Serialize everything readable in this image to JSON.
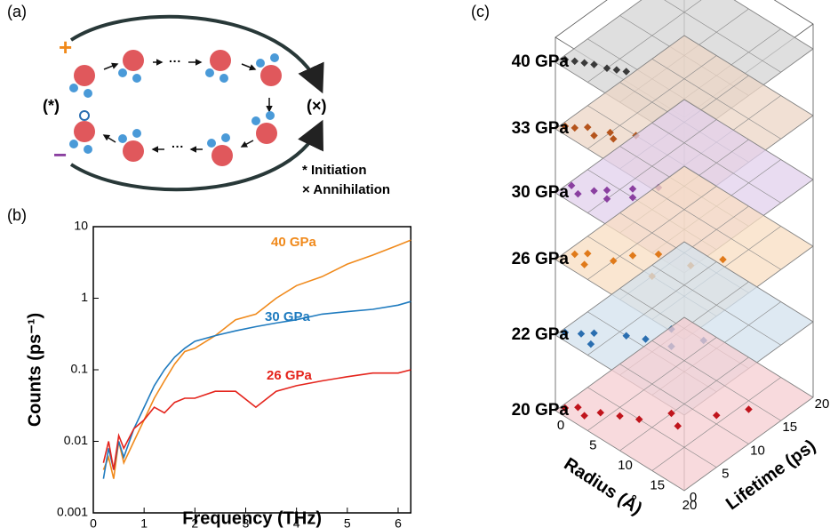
{
  "panel_a": {
    "label": "(a)",
    "plus": "+",
    "minus": "−",
    "initiation_mark": "(*)",
    "annihilation_mark": "(×)",
    "legend": [
      "* Initiation",
      "× Annihilation"
    ]
  },
  "chart_data": [
    {
      "type": "line",
      "panel_label": "(b)",
      "xlabel": "Frequency (THz)",
      "ylabel": "Counts (ps⁻¹)",
      "log_y": true,
      "xlim": [
        0,
        6.25
      ],
      "xticks": [
        0,
        1,
        2,
        3,
        4,
        5,
        6
      ],
      "ylim": [
        0.001,
        10
      ],
      "yticks": [
        0.001,
        0.01,
        0.1,
        1,
        10
      ],
      "x": [
        0.2,
        0.3,
        0.4,
        0.5,
        0.6,
        0.8,
        1.0,
        1.2,
        1.4,
        1.6,
        1.8,
        2.0,
        2.4,
        2.8,
        3.2,
        3.6,
        4.0,
        4.5,
        5.0,
        5.5,
        6.0,
        6.25
      ],
      "series": [
        {
          "name": "40 GPa",
          "color": "#f08a1c",
          "values": [
            0.004,
            0.006,
            0.003,
            0.01,
            0.005,
            0.01,
            0.02,
            0.04,
            0.07,
            0.12,
            0.18,
            0.2,
            0.3,
            0.5,
            0.6,
            1.0,
            1.5,
            2.0,
            3.0,
            4.0,
            5.5,
            6.5
          ]
        },
        {
          "name": "30 GPa",
          "color": "#1f7bbf",
          "values": [
            0.003,
            0.008,
            0.004,
            0.01,
            0.006,
            0.015,
            0.03,
            0.06,
            0.1,
            0.15,
            0.2,
            0.25,
            0.3,
            0.35,
            0.4,
            0.45,
            0.5,
            0.6,
            0.65,
            0.7,
            0.8,
            0.9
          ]
        },
        {
          "name": "26 GPa",
          "color": "#e4241c",
          "values": [
            0.005,
            0.01,
            0.004,
            0.012,
            0.008,
            0.015,
            0.02,
            0.03,
            0.025,
            0.035,
            0.04,
            0.04,
            0.05,
            0.05,
            0.03,
            0.05,
            0.06,
            0.07,
            0.08,
            0.09,
            0.09,
            0.1
          ]
        }
      ]
    },
    {
      "type": "scatter3d",
      "panel_label": "(c)",
      "xlabel": "Radius (Å)",
      "ylabel": "Lifetime (ps)",
      "xlim": [
        0,
        20
      ],
      "xticks": [
        0,
        5,
        10,
        15,
        20
      ],
      "ylim": [
        0,
        20
      ],
      "yticks": [
        0,
        5,
        10,
        15,
        20
      ],
      "series": [
        {
          "name": "40 GPa",
          "color": "#3a3a3a",
          "plane": "#d4d4d4",
          "x": [
            0.5,
            1.5,
            2.5,
            3.5,
            5,
            6,
            7
          ],
          "values": [
            1,
            1.5,
            2,
            2.5,
            3,
            3.5,
            4
          ]
        },
        {
          "name": "33 GPa",
          "color": "#b5541c",
          "plane": "#ecd5c6",
          "x": [
            0.5,
            1.5,
            2.5,
            4,
            5,
            6,
            7.5
          ],
          "values": [
            1,
            1.5,
            2.5,
            2,
            3.5,
            3,
            5
          ]
        },
        {
          "name": "30 GPa",
          "color": "#8a3fa0",
          "plane": "#e2d0ec",
          "x": [
            0.5,
            2,
            3,
            4,
            5,
            6,
            7,
            8
          ],
          "values": [
            2,
            1.5,
            3,
            4,
            3,
            6,
            5,
            8
          ]
        },
        {
          "name": "26 GPa",
          "color": "#e07a1a",
          "plane": "#f8ddc2",
          "x": [
            1,
            2,
            3,
            5,
            6,
            8,
            10,
            12,
            14
          ],
          "values": [
            2,
            3,
            1.5,
            4,
            6,
            8,
            5,
            9,
            12
          ]
        },
        {
          "name": "22 GPa",
          "color": "#2a6eb0",
          "plane": "#d3e2ee",
          "x": [
            0.5,
            2,
            3,
            4,
            6,
            8,
            9,
            11,
            13
          ],
          "values": [
            1,
            2,
            3,
            1.5,
            5,
            6,
            9,
            7,
            10
          ]
        },
        {
          "name": "20 GPa",
          "color": "#c0141c",
          "plane": "#f6cdd1",
          "x": [
            0.5,
            1.5,
            3,
            4,
            6,
            8,
            10,
            12,
            14,
            16
          ],
          "values": [
            1,
            2,
            1.5,
            3,
            4,
            5,
            8,
            7,
            11,
            14
          ]
        }
      ]
    }
  ]
}
